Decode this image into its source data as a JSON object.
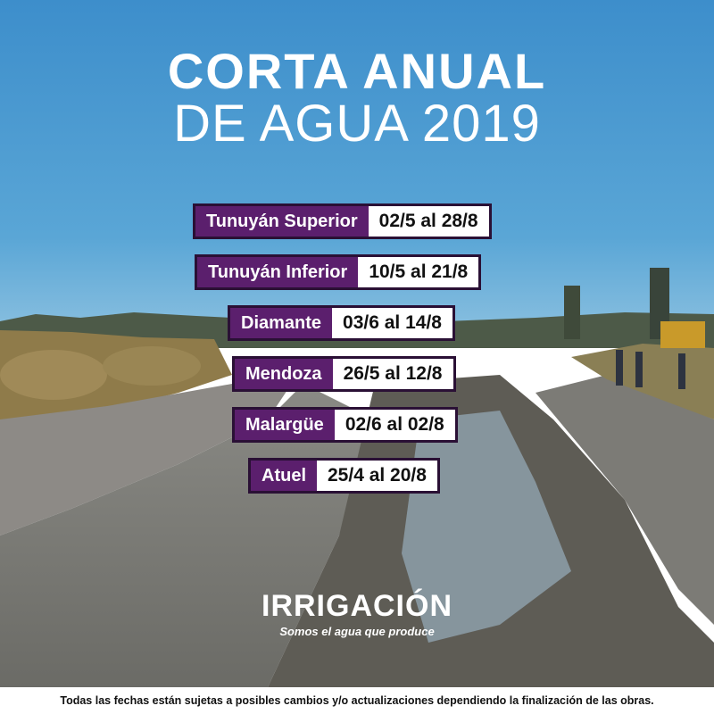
{
  "title": {
    "line1": "CORTA ANUAL",
    "line2": "DE AGUA 2019"
  },
  "schedule": [
    {
      "zone": "Tunuyán Superior",
      "dates": "02/5 al 28/8"
    },
    {
      "zone": "Tunuyán Inferior",
      "dates": "10/5 al 21/8"
    },
    {
      "zone": "Diamante",
      "dates": "03/6 al 14/8"
    },
    {
      "zone": "Mendoza",
      "dates": "26/5 al 12/8"
    },
    {
      "zone": "Malargüe",
      "dates": "02/6 al 02/8"
    },
    {
      "zone": "Atuel",
      "dates": "25/4 al 20/8"
    }
  ],
  "brand": {
    "name": "IRRIGACIÓN",
    "tagline": "Somos el agua que produce"
  },
  "footer": {
    "note": "Todas las fechas están sujetas a posibles cambios y/o actualizaciones dependiendo la finalización de las obras."
  },
  "colors": {
    "label_bg": "#5b1f6d",
    "dates_bg": "#ffffff",
    "sky": "#4a9bd0",
    "text_light": "#ffffff"
  }
}
